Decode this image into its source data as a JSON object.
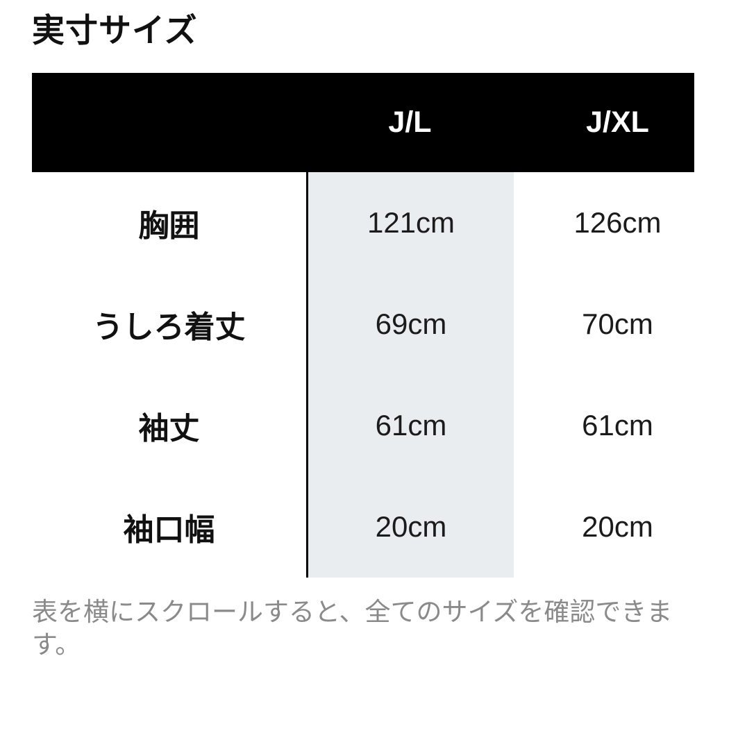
{
  "section": {
    "title": "実寸サイズ"
  },
  "table": {
    "columns": [
      "J/L",
      "J/XL"
    ],
    "highlighted_column": "J/L",
    "rows": [
      {
        "label": "胸囲",
        "values": [
          "121cm",
          "126cm"
        ]
      },
      {
        "label": "うしろ着丈",
        "values": [
          "69cm",
          "70cm"
        ]
      },
      {
        "label": "袖丈",
        "values": [
          "61cm",
          "61cm"
        ]
      },
      {
        "label": "袖口幅",
        "values": [
          "20cm",
          "20cm"
        ]
      }
    ]
  },
  "footnote": "表を横にスクロールすると、全てのサイズを確認できます。",
  "colors": {
    "header_bg": "#000000",
    "header_text": "#ffffff",
    "highlight_bg": "#e9edf0",
    "column_divider": "#000000",
    "label_text": "#111111",
    "value_text": "#1b1b1b",
    "footnote_text": "#8a8a8a"
  }
}
